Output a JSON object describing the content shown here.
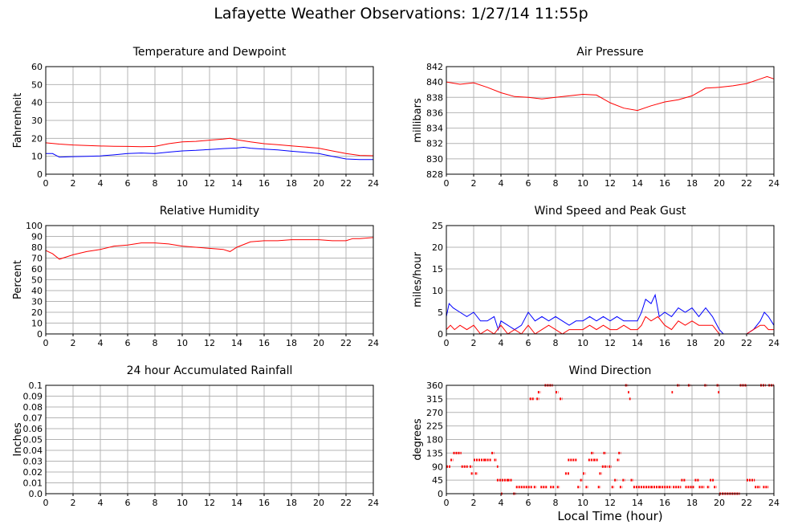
{
  "title": "Lafayette Weather Observations: 1/27/14 11:55p",
  "xlabel_global": "Local Time (hour)",
  "colors": {
    "red": "#ff0000",
    "blue": "#0000ff",
    "grid": "#b4b4b4",
    "frame": "#000000"
  },
  "chart_data": [
    {
      "type": "line",
      "title": "Temperature and Dewpoint",
      "ylabel": "Fahrenheit",
      "xlim": [
        0,
        24
      ],
      "ylim": [
        0,
        60
      ],
      "xticks": [
        0,
        2,
        4,
        6,
        8,
        10,
        12,
        14,
        16,
        18,
        20,
        22,
        24
      ],
      "yticks": [
        0,
        10,
        20,
        30,
        40,
        50,
        60
      ],
      "ytick_labels": [
        "0",
        "10",
        "20",
        "30",
        "40",
        "50",
        "60"
      ],
      "grid": true,
      "series": [
        {
          "color": "#ff0000",
          "x": [
            0,
            1,
            2,
            3,
            4,
            5,
            6,
            7,
            8,
            9,
            10,
            11,
            12,
            13,
            13.5,
            14,
            15,
            16,
            17,
            18,
            19,
            20,
            21,
            22,
            23,
            24
          ],
          "y": [
            17.5,
            16.8,
            16.3,
            16,
            15.7,
            15.6,
            15.5,
            15.3,
            15.5,
            17,
            18,
            18.3,
            19,
            19.6,
            20,
            19.2,
            18,
            17,
            16.5,
            15.8,
            15.2,
            14.5,
            13,
            11.5,
            10.5,
            10.3
          ]
        },
        {
          "color": "#0000ff",
          "x": [
            0,
            0.5,
            1,
            2,
            3,
            4,
            5,
            6,
            7,
            8,
            9,
            10,
            11,
            12,
            13,
            14,
            14.5,
            15,
            16,
            17,
            18,
            19,
            20,
            21,
            22,
            23,
            24
          ],
          "y": [
            11.5,
            11.5,
            9.5,
            9.8,
            10,
            10.2,
            10.8,
            11.5,
            11.8,
            11.5,
            12.3,
            13,
            13.3,
            13.8,
            14.3,
            14.6,
            15,
            14.5,
            14,
            13.5,
            12.8,
            12.2,
            11.5,
            10,
            8.5,
            8.2,
            8.2
          ]
        }
      ]
    },
    {
      "type": "line",
      "title": "Air Pressure",
      "ylabel": "millibars",
      "xlim": [
        0,
        24
      ],
      "ylim": [
        828,
        842
      ],
      "xticks": [
        0,
        2,
        4,
        6,
        8,
        10,
        12,
        14,
        16,
        18,
        20,
        22,
        24
      ],
      "yticks": [
        828,
        830,
        832,
        834,
        836,
        838,
        840,
        842
      ],
      "ytick_labels": [
        "828",
        "830",
        "832",
        "834",
        "836",
        "838",
        "840",
        "842"
      ],
      "grid": true,
      "series": [
        {
          "color": "#ff0000",
          "x": [
            0,
            1,
            2,
            3,
            4,
            5,
            6,
            7,
            8,
            9,
            10,
            11,
            12,
            13,
            14,
            15,
            16,
            17,
            18,
            19,
            20,
            21,
            22,
            23,
            23.5,
            24
          ],
          "y": [
            840,
            839.7,
            839.9,
            839.3,
            838.6,
            838.1,
            838,
            837.8,
            838,
            838.2,
            838.4,
            838.3,
            837.3,
            836.6,
            836.3,
            836.9,
            837.4,
            837.7,
            838.2,
            839.2,
            839.3,
            839.5,
            839.8,
            840.4,
            840.7,
            840.4
          ]
        }
      ]
    },
    {
      "type": "line",
      "title": "Relative Humidity",
      "ylabel": "Percent",
      "xlim": [
        0,
        24
      ],
      "ylim": [
        0,
        100
      ],
      "xticks": [
        0,
        2,
        4,
        6,
        8,
        10,
        12,
        14,
        16,
        18,
        20,
        22,
        24
      ],
      "yticks": [
        0,
        10,
        20,
        30,
        40,
        50,
        60,
        70,
        80,
        90,
        100
      ],
      "ytick_labels": [
        "0",
        "10",
        "20",
        "30",
        "40",
        "50",
        "60",
        "70",
        "80",
        "90",
        "100"
      ],
      "grid": true,
      "series": [
        {
          "color": "#ff0000",
          "x": [
            0,
            0.5,
            1,
            1.5,
            2,
            3,
            4,
            5,
            6,
            7,
            8,
            9,
            10,
            11,
            12,
            13,
            13.5,
            14,
            15,
            16,
            17,
            18,
            19,
            20,
            21,
            22,
            22.5,
            23,
            24
          ],
          "y": [
            77,
            74,
            69,
            71,
            73,
            76,
            78,
            81,
            82,
            84,
            84,
            83,
            81,
            80,
            79,
            78,
            76,
            80,
            85,
            86,
            86,
            87,
            87,
            87,
            86,
            86,
            88,
            88,
            89
          ]
        }
      ]
    },
    {
      "type": "line",
      "title": "Wind Speed and Peak Gust",
      "ylabel": "miles/hour",
      "xlim": [
        0,
        24
      ],
      "ylim": [
        0,
        25
      ],
      "xticks": [
        0,
        2,
        4,
        6,
        8,
        10,
        12,
        14,
        16,
        18,
        20,
        22,
        24
      ],
      "yticks": [
        0,
        5,
        10,
        15,
        20,
        25
      ],
      "ytick_labels": [
        "0",
        "5",
        "10",
        "15",
        "20",
        "25"
      ],
      "grid": true,
      "series": [
        {
          "color": "#0000ff",
          "x": [
            0,
            0.2,
            0.5,
            1,
            1.5,
            2,
            2.5,
            3,
            3.5,
            3.8,
            4,
            4.5,
            5,
            5.5,
            6,
            6.5,
            7,
            7.5,
            8,
            8.5,
            9,
            9.5,
            10,
            10.5,
            11,
            11.5,
            12,
            12.5,
            13,
            13.5,
            14,
            14.3,
            14.6,
            15,
            15.3,
            15.6,
            16,
            16.5,
            17,
            17.5,
            18,
            18.5,
            19,
            19.5,
            20,
            20.3,
            21,
            22,
            22.5,
            23,
            23.3,
            23.6,
            24
          ],
          "y": [
            4,
            7,
            6,
            5,
            4,
            5,
            3,
            3,
            4,
            1,
            3,
            2,
            1,
            2,
            5,
            3,
            4,
            3,
            4,
            3,
            2,
            3,
            3,
            4,
            3,
            4,
            3,
            4,
            3,
            3,
            3,
            5,
            8,
            7,
            9,
            4,
            5,
            4,
            6,
            5,
            6,
            4,
            6,
            4,
            1,
            0,
            0,
            0,
            1,
            3,
            5,
            4,
            2
          ]
        },
        {
          "color": "#ff0000",
          "x": [
            0,
            0.3,
            0.6,
            1,
            1.5,
            2,
            2.5,
            3,
            3.5,
            4,
            4.5,
            5,
            5.5,
            6,
            6.5,
            7,
            7.5,
            8,
            8.5,
            9,
            9.5,
            10,
            10.5,
            11,
            11.5,
            12,
            12.5,
            13,
            13.5,
            14,
            14.3,
            14.6,
            15,
            15.5,
            16,
            16.5,
            17,
            17.5,
            18,
            18.5,
            19,
            19.5,
            20,
            20.3,
            21,
            22,
            22.5,
            23,
            23.3,
            23.6,
            24
          ],
          "y": [
            1,
            2,
            1,
            2,
            1,
            2,
            0,
            1,
            0,
            2,
            0,
            1,
            0,
            2,
            0,
            1,
            2,
            1,
            0,
            1,
            1,
            1,
            2,
            1,
            2,
            1,
            1,
            2,
            1,
            1,
            2,
            4,
            3,
            4,
            2,
            1,
            3,
            2,
            3,
            2,
            2,
            2,
            0,
            0,
            0,
            0,
            1,
            2,
            2,
            1,
            1
          ]
        }
      ]
    },
    {
      "type": "line",
      "title": "24 hour Accumulated Rainfall",
      "ylabel": "Inches",
      "xlim": [
        0,
        24
      ],
      "ylim": [
        0,
        0.1
      ],
      "xticks": [
        0,
        2,
        4,
        6,
        8,
        10,
        12,
        14,
        16,
        18,
        20,
        22,
        24
      ],
      "yticks": [
        0,
        0.01,
        0.02,
        0.03,
        0.04,
        0.05,
        0.06,
        0.07,
        0.08,
        0.09,
        0.1
      ],
      "ytick_labels": [
        "0.0",
        "0.01",
        "0.02",
        "0.03",
        "0.04",
        "0.05",
        "0.06",
        "0.07",
        "0.08",
        "0.09",
        "0.1"
      ],
      "grid": true,
      "series": [
        {
          "color": "#ff0000",
          "x": [
            0,
            24
          ],
          "y": [
            0,
            0
          ]
        }
      ]
    },
    {
      "type": "scatter",
      "title": "Wind Direction",
      "ylabel": "degrees",
      "xlim": [
        0,
        24
      ],
      "ylim": [
        0,
        360
      ],
      "xticks": [
        0,
        2,
        4,
        6,
        8,
        10,
        12,
        14,
        16,
        18,
        20,
        22,
        24
      ],
      "yticks": [
        0,
        45,
        90,
        135,
        180,
        225,
        270,
        315,
        360
      ],
      "ytick_labels": [
        "0",
        "45",
        "90",
        "135",
        "180",
        "225",
        "270",
        "315",
        "360"
      ],
      "grid": true,
      "series": [
        {
          "color": "#ff0000",
          "segments": [
            [
              0.0,
              0.3,
              90
            ],
            [
              0.3,
              0.5,
              112
            ],
            [
              0.5,
              1.1,
              135
            ],
            [
              1.1,
              1.6,
              90
            ],
            [
              1.7,
              1.9,
              90
            ],
            [
              1.8,
              2.0,
              67
            ],
            [
              2.1,
              2.3,
              67
            ],
            [
              2.0,
              2.8,
              112
            ],
            [
              2.8,
              3.3,
              112
            ],
            [
              3.3,
              3.5,
              135
            ],
            [
              3.5,
              3.7,
              112
            ],
            [
              3.7,
              3.8,
              90
            ],
            [
              3.7,
              4.5,
              45
            ],
            [
              4.0,
              4.1,
              0
            ],
            [
              4.5,
              4.8,
              45
            ],
            [
              4.9,
              5.1,
              0
            ],
            [
              5.1,
              6.3,
              22
            ],
            [
              6.1,
              6.4,
              315
            ],
            [
              6.4,
              6.6,
              22
            ],
            [
              6.6,
              6.8,
              315
            ],
            [
              6.7,
              6.9,
              337
            ],
            [
              6.9,
              7.4,
              22
            ],
            [
              7.2,
              7.8,
              360
            ],
            [
              7.6,
              7.9,
              22
            ],
            [
              8.0,
              8.2,
              337
            ],
            [
              8.1,
              8.3,
              22
            ],
            [
              8.3,
              8.5,
              315
            ],
            [
              8.7,
              9.0,
              67
            ],
            [
              8.9,
              9.6,
              112
            ],
            [
              9.6,
              9.8,
              22
            ],
            [
              9.8,
              10.0,
              45
            ],
            [
              10.0,
              10.2,
              67
            ],
            [
              10.2,
              10.4,
              22
            ],
            [
              10.4,
              10.8,
              112
            ],
            [
              10.6,
              10.8,
              135
            ],
            [
              10.8,
              11.1,
              112
            ],
            [
              11.1,
              11.3,
              22
            ],
            [
              11.2,
              11.4,
              67
            ],
            [
              11.4,
              11.8,
              90
            ],
            [
              11.5,
              11.7,
              135
            ],
            [
              11.9,
              12.1,
              90
            ],
            [
              12.1,
              12.3,
              22
            ],
            [
              12.3,
              12.5,
              45
            ],
            [
              12.5,
              12.7,
              112
            ],
            [
              12.6,
              12.8,
              135
            ],
            [
              12.7,
              12.9,
              22
            ],
            [
              12.9,
              13.1,
              45
            ],
            [
              13.1,
              13.3,
              360
            ],
            [
              13.3,
              13.4,
              337
            ],
            [
              13.4,
              13.5,
              315
            ],
            [
              13.5,
              13.7,
              45
            ],
            [
              13.7,
              14.6,
              22
            ],
            [
              14.6,
              15.0,
              22
            ],
            [
              15.0,
              15.6,
              22
            ],
            [
              15.6,
              16.5,
              22
            ],
            [
              16.5,
              16.6,
              337
            ],
            [
              16.6,
              17.2,
              22
            ],
            [
              16.9,
              17.1,
              360
            ],
            [
              17.2,
              17.5,
              45
            ],
            [
              17.5,
              18.2,
              22
            ],
            [
              17.7,
              17.9,
              360
            ],
            [
              18.2,
              18.5,
              45
            ],
            [
              18.5,
              18.9,
              22
            ],
            [
              18.9,
              19.1,
              360
            ],
            [
              19.1,
              19.3,
              22
            ],
            [
              19.3,
              19.6,
              45
            ],
            [
              19.6,
              19.8,
              22
            ],
            [
              19.8,
              20.0,
              360
            ],
            [
              19.9,
              20.0,
              337
            ],
            [
              20.0,
              20.2,
              0
            ],
            [
              20.2,
              21.5,
              0
            ],
            [
              21.5,
              22.0,
              360
            ],
            [
              22.0,
              22.6,
              45
            ],
            [
              22.6,
              23.0,
              22
            ],
            [
              23.0,
              23.4,
              360
            ],
            [
              23.2,
              23.6,
              22
            ],
            [
              23.6,
              24.0,
              360
            ]
          ]
        }
      ]
    }
  ]
}
